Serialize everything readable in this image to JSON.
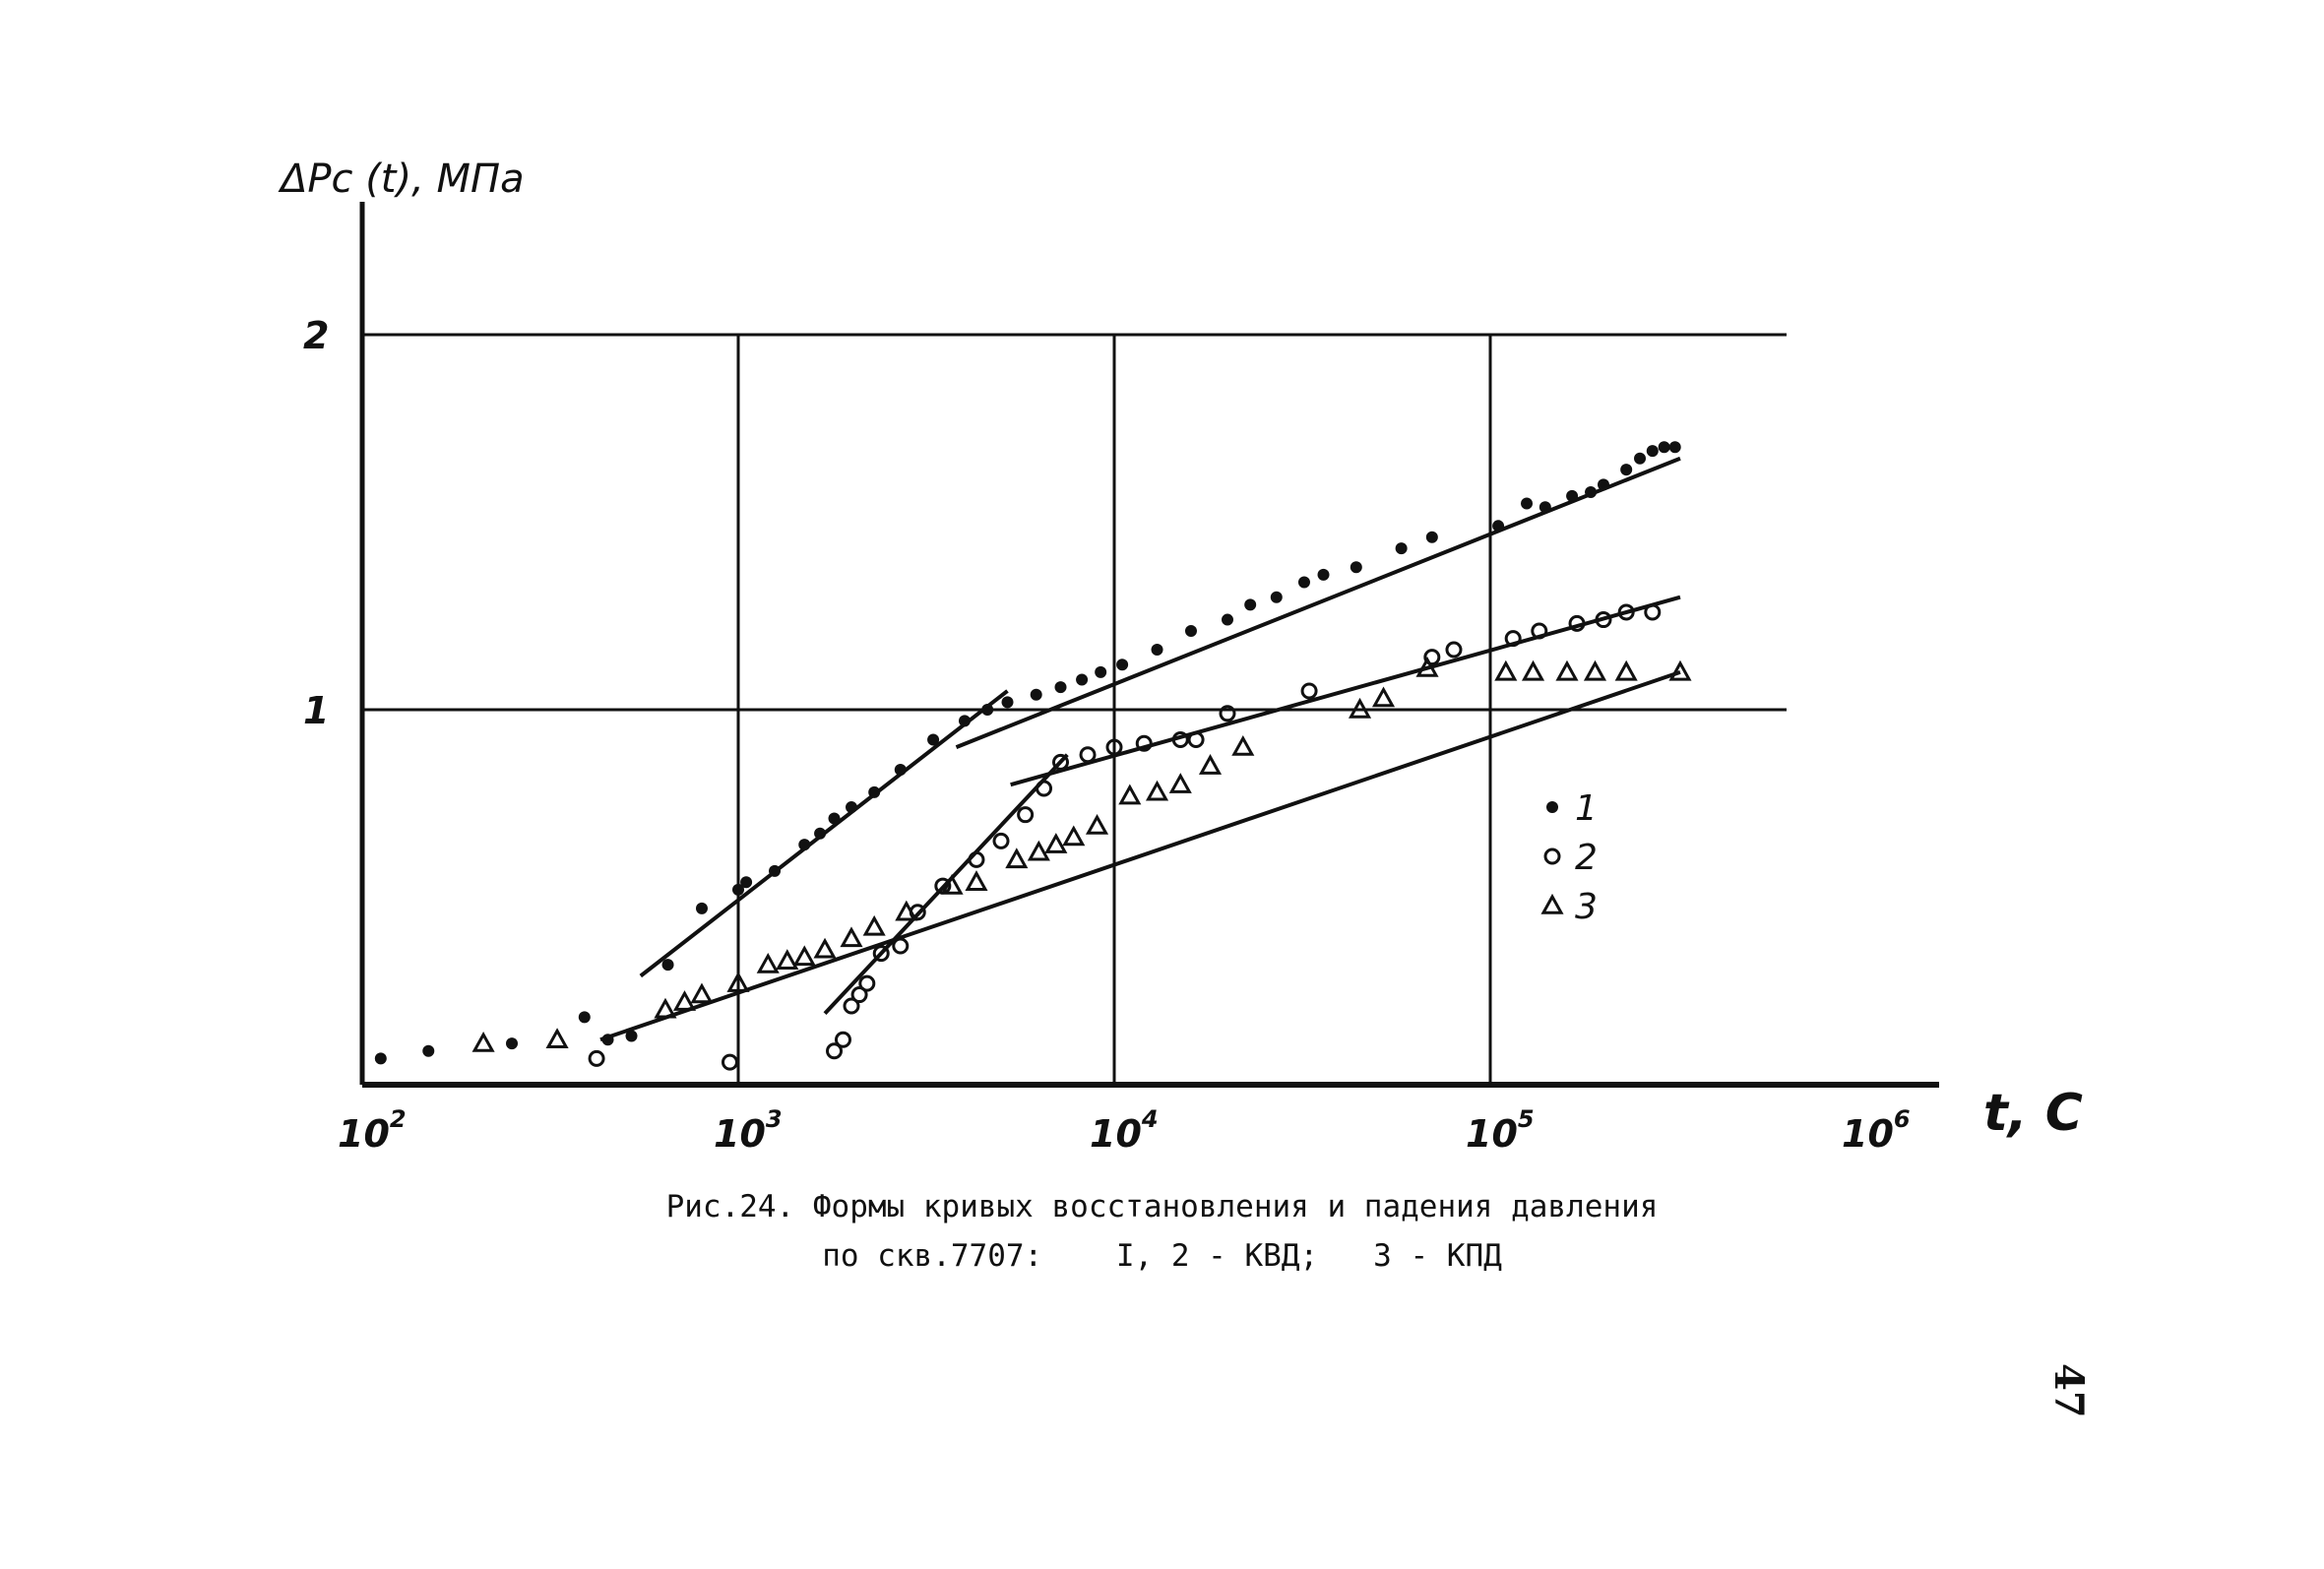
{
  "chart_data": {
    "type": "scatter",
    "ylabel": "ΔPc (t), МПа",
    "xlabel": "t, C",
    "x_scale": "log",
    "xlim": [
      100,
      1000000
    ],
    "ylim": [
      0,
      2
    ],
    "grid": true,
    "x_ticks": [
      {
        "base": "10",
        "exp": "2",
        "value": 100
      },
      {
        "base": "10",
        "exp": "3",
        "value": 1000
      },
      {
        "base": "10",
        "exp": "4",
        "value": 10000
      },
      {
        "base": "10",
        "exp": "5",
        "value": 100000
      },
      {
        "base": "10",
        "exp": "6",
        "value": 1000000
      }
    ],
    "y_ticks": [
      {
        "label": "1",
        "value": 1
      },
      {
        "label": "2",
        "value": 2
      }
    ],
    "legend_position": "right",
    "series": [
      {
        "name": "1",
        "marker": "dot",
        "points": [
          [
            112,
            0.07
          ],
          [
            150,
            0.09
          ],
          [
            250,
            0.11
          ],
          [
            390,
            0.18
          ],
          [
            450,
            0.12
          ],
          [
            520,
            0.13
          ],
          [
            650,
            0.32
          ],
          [
            800,
            0.47
          ],
          [
            1000,
            0.52
          ],
          [
            1050,
            0.54
          ],
          [
            1250,
            0.57
          ],
          [
            1500,
            0.64
          ],
          [
            1650,
            0.67
          ],
          [
            1800,
            0.71
          ],
          [
            2000,
            0.74
          ],
          [
            2300,
            0.78
          ],
          [
            2700,
            0.84
          ],
          [
            3300,
            0.92
          ],
          [
            4000,
            0.97
          ],
          [
            4600,
            1.0
          ],
          [
            5200,
            1.02
          ],
          [
            6200,
            1.04
          ],
          [
            7200,
            1.06
          ],
          [
            8200,
            1.08
          ],
          [
            9200,
            1.1
          ],
          [
            10500,
            1.12
          ],
          [
            13000,
            1.16
          ],
          [
            16000,
            1.21
          ],
          [
            20000,
            1.24
          ],
          [
            23000,
            1.28
          ],
          [
            27000,
            1.3
          ],
          [
            32000,
            1.34
          ],
          [
            36000,
            1.36
          ],
          [
            44000,
            1.38
          ],
          [
            58000,
            1.43
          ],
          [
            70000,
            1.46
          ],
          [
            105000,
            1.49
          ],
          [
            125000,
            1.55
          ],
          [
            140000,
            1.54
          ],
          [
            165000,
            1.57
          ],
          [
            185000,
            1.58
          ],
          [
            200000,
            1.6
          ],
          [
            230000,
            1.64
          ],
          [
            250000,
            1.67
          ],
          [
            270000,
            1.69
          ],
          [
            290000,
            1.7
          ],
          [
            310000,
            1.7
          ]
        ]
      },
      {
        "name": "2",
        "marker": "circle",
        "points": [
          [
            420,
            0.07
          ],
          [
            950,
            0.06
          ],
          [
            1800,
            0.09
          ],
          [
            1900,
            0.12
          ],
          [
            2000,
            0.21
          ],
          [
            2100,
            0.24
          ],
          [
            2200,
            0.27
          ],
          [
            2400,
            0.35
          ],
          [
            2700,
            0.37
          ],
          [
            3000,
            0.46
          ],
          [
            3500,
            0.53
          ],
          [
            4300,
            0.6
          ],
          [
            5000,
            0.65
          ],
          [
            5800,
            0.72
          ],
          [
            6500,
            0.79
          ],
          [
            7200,
            0.86
          ],
          [
            8500,
            0.88
          ],
          [
            10000,
            0.9
          ],
          [
            12000,
            0.91
          ],
          [
            15000,
            0.92
          ],
          [
            16500,
            0.92
          ],
          [
            20000,
            0.99
          ],
          [
            33000,
            1.05
          ],
          [
            70000,
            1.14
          ],
          [
            80000,
            1.16
          ],
          [
            115000,
            1.19
          ],
          [
            135000,
            1.21
          ],
          [
            170000,
            1.23
          ],
          [
            200000,
            1.24
          ],
          [
            230000,
            1.26
          ],
          [
            270000,
            1.26
          ]
        ]
      },
      {
        "name": "3",
        "marker": "triangle",
        "points": [
          [
            210,
            0.11
          ],
          [
            330,
            0.12
          ],
          [
            640,
            0.2
          ],
          [
            720,
            0.22
          ],
          [
            800,
            0.24
          ],
          [
            1000,
            0.27
          ],
          [
            1200,
            0.32
          ],
          [
            1350,
            0.33
          ],
          [
            1500,
            0.34
          ],
          [
            1700,
            0.36
          ],
          [
            2000,
            0.39
          ],
          [
            2300,
            0.42
          ],
          [
            2800,
            0.46
          ],
          [
            3700,
            0.53
          ],
          [
            4300,
            0.54
          ],
          [
            5500,
            0.6
          ],
          [
            6300,
            0.62
          ],
          [
            7000,
            0.64
          ],
          [
            7800,
            0.66
          ],
          [
            9000,
            0.69
          ],
          [
            11000,
            0.77
          ],
          [
            13000,
            0.78
          ],
          [
            15000,
            0.8
          ],
          [
            18000,
            0.85
          ],
          [
            22000,
            0.9
          ],
          [
            45000,
            1.0
          ],
          [
            52000,
            1.03
          ],
          [
            68000,
            1.11
          ],
          [
            110000,
            1.1
          ],
          [
            130000,
            1.1
          ],
          [
            160000,
            1.1
          ],
          [
            190000,
            1.1
          ],
          [
            230000,
            1.1
          ],
          [
            320000,
            1.1
          ]
        ]
      }
    ],
    "fit_lines": [
      {
        "series": "1",
        "points": [
          [
            550,
            0.29
          ],
          [
            5200,
            1.05
          ]
        ]
      },
      {
        "series": "1",
        "points": [
          [
            3800,
            0.9
          ],
          [
            320000,
            1.67
          ]
        ]
      },
      {
        "series": "2",
        "points": [
          [
            1700,
            0.19
          ],
          [
            7500,
            0.88
          ]
        ]
      },
      {
        "series": "2",
        "points": [
          [
            5300,
            0.8
          ],
          [
            320000,
            1.3
          ]
        ]
      },
      {
        "series": "3",
        "points": [
          [
            430,
            0.12
          ],
          [
            320000,
            1.1
          ]
        ]
      }
    ]
  },
  "caption": {
    "line1": "Рис.24. Формы кривых восстановления и падения давления",
    "line2": "по скв.7707:    I, 2 - КВД;   3 - КПД"
  },
  "page_number": "47",
  "colors": {
    "ink": "#111111",
    "background": "#ffffff"
  }
}
